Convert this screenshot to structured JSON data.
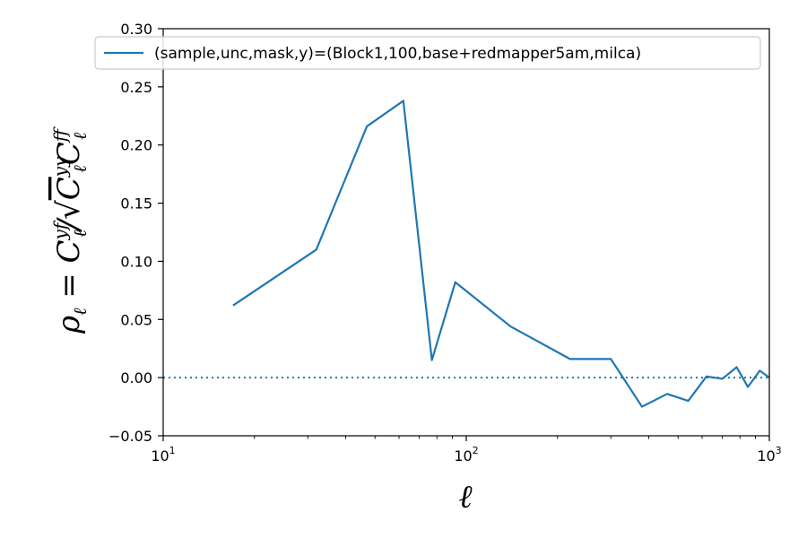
{
  "chart_data": {
    "type": "line",
    "xscale": "log",
    "xlim": [
      10,
      1000
    ],
    "ylim": [
      -0.05,
      0.3
    ],
    "xlabel": "ℓ",
    "ylabel": "ρℓ = Cℓ^yf / √(Cℓ^yy Cℓ^ff)",
    "xticks": [
      10,
      100,
      1000
    ],
    "xtick_labels": [
      {
        "base": "10",
        "exp": "1"
      },
      {
        "base": "10",
        "exp": "2"
      },
      {
        "base": "10",
        "exp": "3"
      }
    ],
    "yticks": [
      -0.05,
      0.0,
      0.05,
      0.1,
      0.15,
      0.2,
      0.25,
      0.3
    ],
    "ytick_labels": [
      "−0.05",
      "0.00",
      "0.05",
      "0.10",
      "0.15",
      "0.20",
      "0.25",
      "0.30"
    ],
    "legend_position": "top",
    "reference_line": {
      "y": 0.0,
      "style": "dotted"
    },
    "series": [
      {
        "name": "(sample,unc,mask,y)=(Block1,100,base+redmapper5am,milca)",
        "color": "#1f77b4",
        "x": [
          17,
          32,
          47,
          62,
          77,
          92,
          140,
          220,
          300,
          380,
          460,
          540,
          620,
          700,
          780,
          850,
          930,
          1000
        ],
        "y": [
          0.062,
          0.11,
          0.216,
          0.238,
          0.015,
          0.082,
          0.044,
          0.016,
          0.016,
          -0.025,
          -0.014,
          -0.02,
          0.001,
          -0.001,
          0.009,
          -0.008,
          0.006,
          0.0
        ]
      }
    ]
  }
}
